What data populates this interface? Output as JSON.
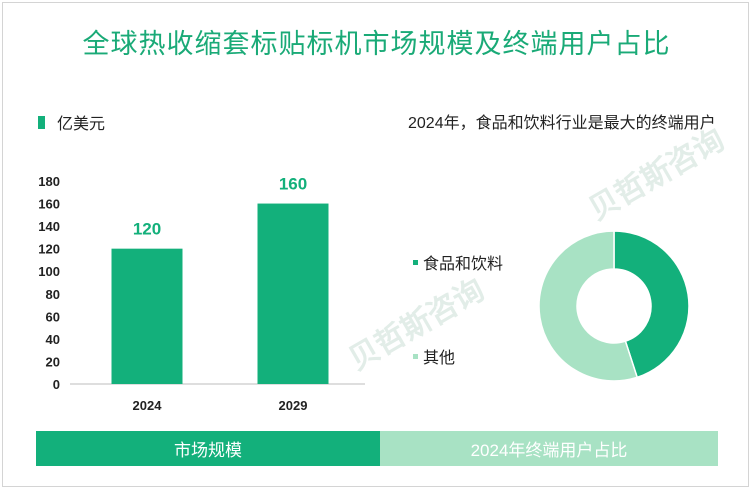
{
  "title": "全球热收缩套标贴标机市场规模及终端用户占比",
  "bar_legend": "亿美元",
  "pie_title": "2024年，食品和饮料行业是最大的终端用户",
  "footer": {
    "left": "市场规模",
    "right": "2024年终端用户占比"
  },
  "watermark": "贝哲斯咨询",
  "colors": {
    "primary": "#13b07b",
    "light": "#a8e2c4",
    "title": "#1aaa77"
  },
  "chart_data": [
    {
      "type": "bar",
      "title": "",
      "xlabel": "",
      "ylabel": "",
      "categories": [
        "2024",
        "2029"
      ],
      "series": [
        {
          "name": "亿美元",
          "values": [
            120,
            160
          ]
        }
      ],
      "ylim": [
        0,
        180
      ],
      "yticks": [
        0,
        20,
        40,
        60,
        80,
        100,
        120,
        140,
        160,
        180
      ],
      "grid": false,
      "data_labels": true
    },
    {
      "type": "pie",
      "title": "2024年，食品和饮料行业是最大的终端用户",
      "donut": true,
      "slices": [
        {
          "label": "食品和饮料",
          "value": 45
        },
        {
          "label": "其他",
          "value": 55
        }
      ]
    }
  ]
}
